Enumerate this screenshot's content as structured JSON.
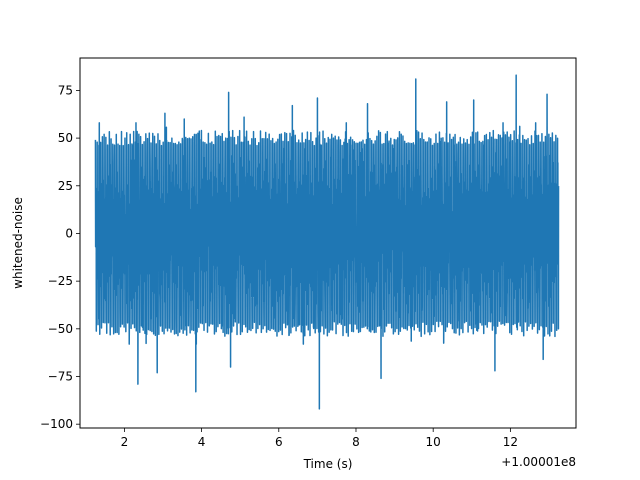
{
  "chart_data": {
    "type": "line",
    "title": "",
    "xlabel": "Time (s)",
    "ylabel": "whitened-noise",
    "x_offset_label": "+1.00001e8",
    "xlim": [
      0.85,
      13.7
    ],
    "ylim": [
      -102,
      92
    ],
    "x_ticks": [
      2,
      4,
      6,
      8,
      10,
      12
    ],
    "y_ticks": [
      -100,
      -75,
      -50,
      -25,
      0,
      25,
      50,
      75
    ],
    "grid": false,
    "series_color": "#1f77b4",
    "series": [
      {
        "x_range": [
          1.25,
          13.25
        ],
        "sample_count": 4800,
        "typical_extent": [
          -50,
          50
        ],
        "peaks": [
          {
            "x": 1.35,
            "y": 58
          },
          {
            "x": 2.3,
            "y": 58
          },
          {
            "x": 3.05,
            "y": 63
          },
          {
            "x": 3.55,
            "y": 60
          },
          {
            "x": 4.7,
            "y": 74
          },
          {
            "x": 5.1,
            "y": 61
          },
          {
            "x": 6.35,
            "y": 67
          },
          {
            "x": 7.0,
            "y": 71
          },
          {
            "x": 7.75,
            "y": 58
          },
          {
            "x": 8.3,
            "y": 68
          },
          {
            "x": 9.55,
            "y": 81
          },
          {
            "x": 10.35,
            "y": 69
          },
          {
            "x": 11.05,
            "y": 70
          },
          {
            "x": 12.15,
            "y": 83
          },
          {
            "x": 12.95,
            "y": 73
          }
        ],
        "troughs": [
          {
            "x": 2.35,
            "y": -79
          },
          {
            "x": 2.85,
            "y": -73
          },
          {
            "x": 3.85,
            "y": -83
          },
          {
            "x": 4.75,
            "y": -70
          },
          {
            "x": 7.05,
            "y": -92
          },
          {
            "x": 8.65,
            "y": -76
          },
          {
            "x": 11.6,
            "y": -72
          },
          {
            "x": 12.85,
            "y": -66
          }
        ]
      }
    ]
  }
}
